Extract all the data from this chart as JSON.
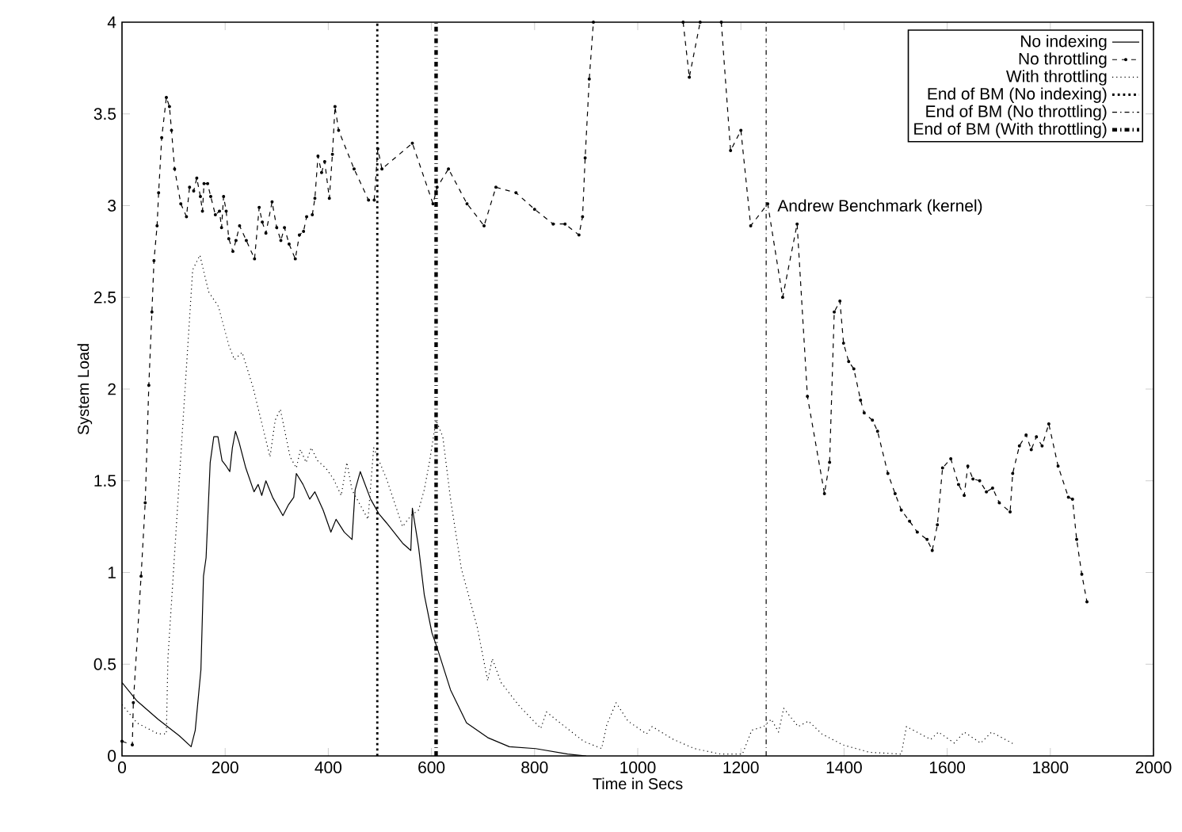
{
  "chart_data": {
    "type": "line",
    "xlabel": "Time in Secs",
    "ylabel": "System Load",
    "xlim": [
      0,
      2000
    ],
    "xticks": [
      0,
      200,
      400,
      600,
      800,
      1000,
      1200,
      1400,
      1600,
      1800,
      2000
    ],
    "ylim": [
      0,
      4
    ],
    "yticks": [
      0,
      0.5,
      1,
      1.5,
      2,
      2.5,
      3,
      3.5,
      4
    ],
    "grid": false,
    "legend": "top right",
    "annotations": [
      "Andrew Benchmark (kernel)"
    ],
    "series": [
      {
        "name": "No indexing",
        "color": "#000000",
        "line_style": "solid",
        "marker": "none",
        "x": [
          0,
          29,
          70,
          111,
          134,
          142,
          153,
          158,
          163,
          171,
          178,
          186,
          194,
          202,
          209,
          214,
          220,
          227,
          240,
          256,
          264,
          271,
          279,
          292,
          312,
          323,
          333,
          338,
          351,
          364,
          374,
          390,
          405,
          415,
          431,
          446,
          452,
          462,
          482,
          498,
          513,
          544,
          560,
          563,
          575,
          586,
          601,
          611,
          637,
          668,
          709,
          751,
          802,
          864,
          900
        ],
        "values": [
          0.4,
          0.3,
          0.2,
          0.11,
          0.05,
          0.14,
          0.47,
          0.98,
          1.08,
          1.6,
          1.74,
          1.74,
          1.61,
          1.58,
          1.55,
          1.68,
          1.77,
          1.71,
          1.57,
          1.44,
          1.48,
          1.42,
          1.5,
          1.41,
          1.31,
          1.37,
          1.41,
          1.54,
          1.48,
          1.4,
          1.44,
          1.34,
          1.22,
          1.29,
          1.22,
          1.18,
          1.45,
          1.55,
          1.4,
          1.32,
          1.27,
          1.16,
          1.12,
          1.35,
          1.14,
          0.88,
          0.67,
          0.59,
          0.36,
          0.18,
          0.1,
          0.05,
          0.04,
          0.01,
          0.0
        ]
      },
      {
        "name": "No throttling",
        "color": "#000000",
        "line_style": "dashed",
        "marker": "circle",
        "x": [
          0,
          20,
          22,
          37,
          45,
          52,
          58,
          62,
          68,
          71,
          77,
          86,
          92,
          96,
          102,
          114,
          125,
          131,
          139,
          145,
          152,
          156,
          159,
          166,
          172,
          181,
          189,
          193,
          197,
          202,
          207,
          215,
          221,
          228,
          241,
          257,
          266,
          272,
          279,
          291,
          300,
          308,
          315,
          324,
          336,
          344,
          352,
          358,
          369,
          374,
          380,
          387,
          393,
          402,
          408,
          413,
          420,
          450,
          478,
          489,
          496,
          504,
          563,
          603,
          611,
          633,
          669,
          702,
          725,
          764,
          800,
          836,
          859,
          886,
          893,
          898,
          906,
          914,
          1000,
          1088,
          1100,
          1121,
          1140,
          1162,
          1180,
          1200,
          1219,
          1252,
          1281,
          1309,
          1329,
          1362,
          1372,
          1381,
          1392,
          1399,
          1409,
          1419,
          1432,
          1439,
          1455,
          1465,
          1485,
          1499,
          1511,
          1527,
          1542,
          1561,
          1571,
          1581,
          1591,
          1607,
          1622,
          1633,
          1640,
          1650,
          1663,
          1676,
          1688,
          1701,
          1722,
          1727,
          1740,
          1753,
          1763,
          1773,
          1784,
          1797,
          1815,
          1835,
          1843,
          1851,
          1861,
          1871
        ],
        "values": [
          0.08,
          0.06,
          0.29,
          0.98,
          1.38,
          2.02,
          2.42,
          2.7,
          2.89,
          3.07,
          3.37,
          3.59,
          3.54,
          3.41,
          3.2,
          3.01,
          2.94,
          3.1,
          3.08,
          3.15,
          3.05,
          2.97,
          3.12,
          3.12,
          3.05,
          2.95,
          2.97,
          2.88,
          3.05,
          2.97,
          2.82,
          2.75,
          2.81,
          2.89,
          2.81,
          2.71,
          2.99,
          2.91,
          2.85,
          3.02,
          2.88,
          2.81,
          2.88,
          2.79,
          2.71,
          2.84,
          2.86,
          2.94,
          2.95,
          3.04,
          3.27,
          3.18,
          3.24,
          3.04,
          3.28,
          3.54,
          3.41,
          3.2,
          3.03,
          3.03,
          3.31,
          3.2,
          3.34,
          3.01,
          3.1,
          3.2,
          3.01,
          2.89,
          3.1,
          3.07,
          2.98,
          2.9,
          2.9,
          2.84,
          2.94,
          3.26,
          3.69,
          4.0,
          null,
          4.0,
          3.7,
          4.0,
          null,
          4.0,
          3.3,
          3.41,
          2.89,
          3.01,
          2.5,
          2.9,
          1.96,
          1.43,
          1.6,
          2.42,
          2.48,
          2.25,
          2.15,
          2.11,
          1.94,
          1.87,
          1.83,
          1.77,
          1.54,
          1.43,
          1.34,
          1.28,
          1.22,
          1.18,
          1.12,
          1.26,
          1.57,
          1.62,
          1.48,
          1.42,
          1.58,
          1.51,
          1.5,
          1.44,
          1.46,
          1.38,
          1.33,
          1.54,
          1.69,
          1.75,
          1.67,
          1.74,
          1.69,
          1.81,
          1.58,
          1.41,
          1.4,
          1.18,
          0.99,
          0.84
        ]
      },
      {
        "name": "With throttling",
        "color": "#000000",
        "line_style": "dotted",
        "marker": "none",
        "x": [
          0,
          29,
          70,
          86,
          89,
          120,
          137,
          151,
          168,
          187,
          207,
          218,
          233,
          254,
          287,
          297,
          307,
          326,
          338,
          346,
          357,
          367,
          379,
          395,
          410,
          425,
          436,
          446,
          477,
          488,
          513,
          544,
          560,
          575,
          586,
          596,
          609,
          622,
          637,
          658,
          689,
          709,
          718,
          735,
          771,
          812,
          823,
          854,
          895,
          930,
          940,
          958,
          981,
          1017,
          1028,
          1069,
          1110,
          1161,
          1203,
          1221,
          1244,
          1259,
          1273,
          1283,
          1311,
          1331,
          1357,
          1398,
          1449,
          1511,
          1521,
          1568,
          1583,
          1614,
          1633,
          1665,
          1686,
          1732
        ],
        "values": [
          0.28,
          0.18,
          0.12,
          0.12,
          0.53,
          1.9,
          2.65,
          2.73,
          2.53,
          2.45,
          2.24,
          2.16,
          2.2,
          2.01,
          1.63,
          1.83,
          1.89,
          1.63,
          1.57,
          1.67,
          1.6,
          1.68,
          1.61,
          1.57,
          1.51,
          1.42,
          1.6,
          1.45,
          1.29,
          1.68,
          1.51,
          1.25,
          1.31,
          1.34,
          1.45,
          1.6,
          1.83,
          1.74,
          1.4,
          1.02,
          0.7,
          0.41,
          0.53,
          0.4,
          0.27,
          0.15,
          0.24,
          0.17,
          0.08,
          0.04,
          0.17,
          0.29,
          0.19,
          0.12,
          0.16,
          0.09,
          0.04,
          0.01,
          0.01,
          0.14,
          0.16,
          0.2,
          0.13,
          0.26,
          0.16,
          0.19,
          0.12,
          0.06,
          0.02,
          0.01,
          0.16,
          0.09,
          0.13,
          0.07,
          0.13,
          0.07,
          0.13,
          0.06
        ]
      },
      {
        "name": "End of BM (No indexing)",
        "color": "#000000",
        "line_style": "dotted",
        "marker": "none",
        "x": [
          495,
          495
        ],
        "values": [
          0,
          4
        ]
      },
      {
        "name": "End of BM (No throttling)",
        "color": "#000000",
        "line_style": "dashdot",
        "marker": "none",
        "x": [
          1249,
          1249
        ],
        "values": [
          0,
          4
        ]
      },
      {
        "name": "End of BM (With throttling)",
        "color": "#000000",
        "line_style": "dashdot",
        "marker": "none",
        "x": [
          609,
          609
        ],
        "values": [
          0,
          4
        ]
      }
    ]
  }
}
